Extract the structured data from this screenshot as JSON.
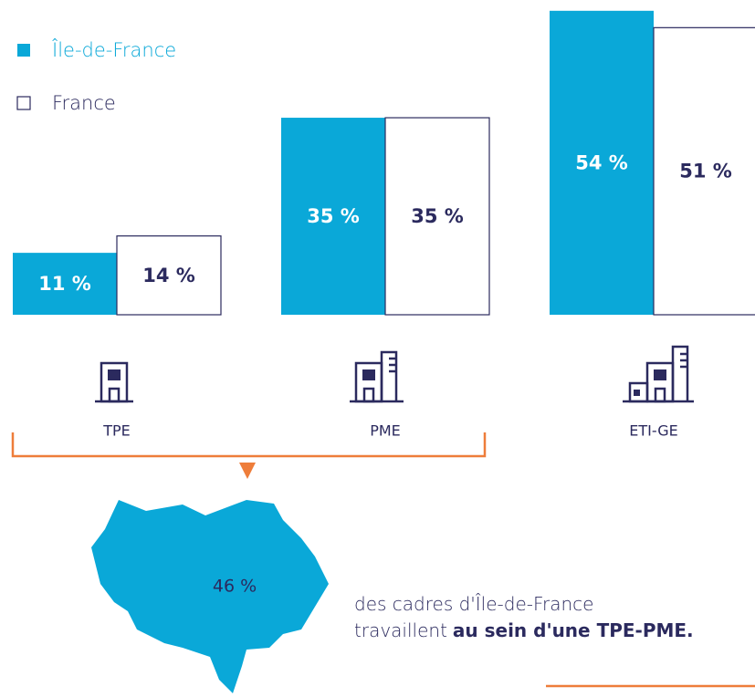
{
  "chart_data": {
    "type": "bar",
    "categories": [
      "TPE",
      "PME",
      "ETI-GE"
    ],
    "series": [
      {
        "name": "Île-de-France",
        "color": "#0aa8d8",
        "values": [
          11,
          35,
          54
        ],
        "value_labels": [
          "11 %",
          "35 %",
          "54 %"
        ]
      },
      {
        "name": "France",
        "color": "#ffffff",
        "values": [
          14,
          35,
          51
        ],
        "value_labels": [
          "14 %",
          "35 %",
          "51 %"
        ]
      }
    ]
  },
  "callout": {
    "label": "46 %",
    "line_1": "des cadres d'Île-de-France",
    "line_2_start": "travaillent",
    "line_2_bold": "au sein d'une TPE-PME."
  }
}
